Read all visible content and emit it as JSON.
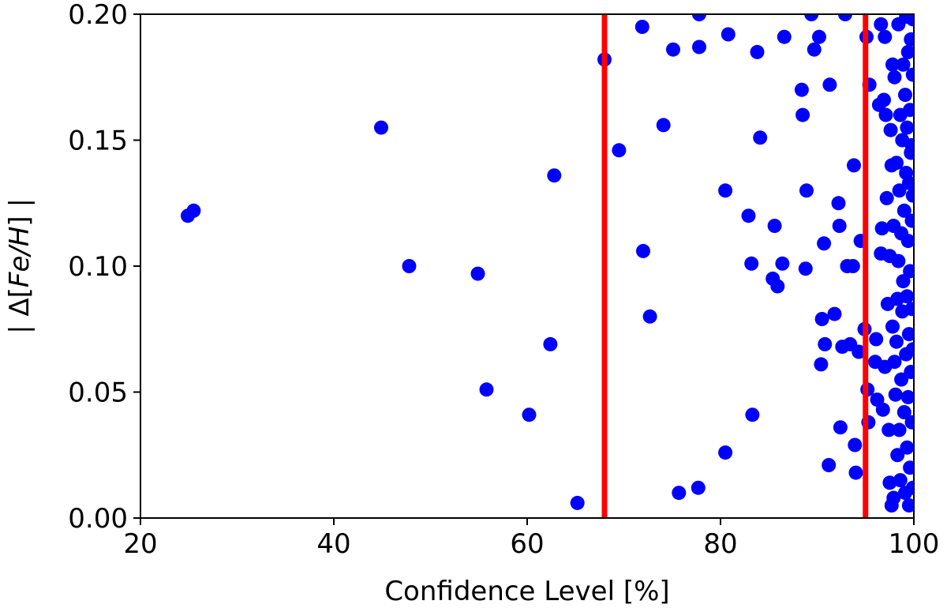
{
  "chart_data": {
    "type": "scatter",
    "xlabel": "Confidence Level [%]",
    "ylabel": {
      "prefix": "| Δ[",
      "italic": "Fe/H",
      "suffix": "] |"
    },
    "xlim": [
      20,
      100
    ],
    "ylim": [
      0,
      0.2
    ],
    "xticks": [
      20,
      40,
      60,
      80,
      100
    ],
    "xtick_labels": [
      "20",
      "40",
      "60",
      "80",
      "100"
    ],
    "yticks": [
      0.0,
      0.05,
      0.1,
      0.15,
      0.2
    ],
    "ytick_labels": [
      "0.00",
      "0.05",
      "0.10",
      "0.15",
      "0.20"
    ],
    "grid": false,
    "point_color": "#0000ff",
    "line_color": "#ff0000",
    "vertical_lines": [
      68,
      95
    ],
    "points": [
      [
        24.9,
        0.12
      ],
      [
        25.5,
        0.122
      ],
      [
        44.9,
        0.155
      ],
      [
        47.8,
        0.1
      ],
      [
        54.9,
        0.097
      ],
      [
        55.8,
        0.051
      ],
      [
        60.2,
        0.041
      ],
      [
        62.4,
        0.069
      ],
      [
        62.8,
        0.136
      ],
      [
        65.2,
        0.006
      ],
      [
        68.0,
        0.182
      ],
      [
        69.5,
        0.146
      ],
      [
        71.9,
        0.195
      ],
      [
        72.0,
        0.106
      ],
      [
        72.7,
        0.08
      ],
      [
        74.1,
        0.156
      ],
      [
        75.1,
        0.186
      ],
      [
        75.7,
        0.01
      ],
      [
        77.8,
        0.187
      ],
      [
        77.7,
        0.012
      ],
      [
        77.8,
        0.2
      ],
      [
        80.5,
        0.13
      ],
      [
        80.5,
        0.026
      ],
      [
        80.8,
        0.192
      ],
      [
        82.9,
        0.12
      ],
      [
        83.2,
        0.101
      ],
      [
        83.3,
        0.041
      ],
      [
        83.8,
        0.185
      ],
      [
        84.1,
        0.151
      ],
      [
        85.4,
        0.095
      ],
      [
        85.6,
        0.116
      ],
      [
        85.9,
        0.092
      ],
      [
        86.4,
        0.101
      ],
      [
        86.6,
        0.191
      ],
      [
        88.4,
        0.17
      ],
      [
        88.5,
        0.16
      ],
      [
        88.8,
        0.099
      ],
      [
        88.9,
        0.13
      ],
      [
        89.4,
        0.2
      ],
      [
        89.7,
        0.186
      ],
      [
        90.2,
        0.191
      ],
      [
        90.4,
        0.061
      ],
      [
        90.5,
        0.079
      ],
      [
        90.7,
        0.109
      ],
      [
        90.8,
        0.069
      ],
      [
        91.2,
        0.021
      ],
      [
        91.3,
        0.172
      ],
      [
        91.8,
        0.081
      ],
      [
        92.2,
        0.125
      ],
      [
        92.3,
        0.116
      ],
      [
        92.4,
        0.036
      ],
      [
        92.6,
        0.068
      ],
      [
        92.9,
        0.2
      ],
      [
        93.1,
        0.1
      ],
      [
        93.4,
        0.069
      ],
      [
        93.7,
        0.1
      ],
      [
        93.8,
        0.14
      ],
      [
        93.9,
        0.029
      ],
      [
        94.0,
        0.018
      ],
      [
        94.3,
        0.066
      ],
      [
        94.5,
        0.11
      ],
      [
        94.9,
        0.075
      ],
      [
        95.1,
        0.191
      ],
      [
        95.2,
        0.051
      ],
      [
        95.3,
        0.038
      ],
      [
        95.4,
        0.172
      ],
      [
        96.0,
        0.062
      ],
      [
        96.1,
        0.071
      ],
      [
        96.2,
        0.047
      ],
      [
        96.4,
        0.164
      ],
      [
        96.6,
        0.105
      ],
      [
        96.6,
        0.196
      ],
      [
        96.7,
        0.115
      ],
      [
        96.8,
        0.043
      ],
      [
        96.9,
        0.166
      ],
      [
        97.0,
        0.06
      ],
      [
        97.0,
        0.191
      ],
      [
        97.1,
        0.16
      ],
      [
        97.2,
        0.127
      ],
      [
        97.3,
        0.085
      ],
      [
        97.4,
        0.035
      ],
      [
        97.5,
        0.014
      ],
      [
        97.5,
        0.104
      ],
      [
        97.6,
        0.154
      ],
      [
        97.7,
        0.14
      ],
      [
        97.7,
        0.005
      ],
      [
        97.8,
        0.18
      ],
      [
        97.8,
        0.076
      ],
      [
        97.9,
        0.116
      ],
      [
        97.9,
        0.008
      ],
      [
        98.0,
        0.062
      ],
      [
        98.0,
        0.175
      ],
      [
        98.1,
        0.049
      ],
      [
        98.2,
        0.141
      ],
      [
        98.2,
        0.07
      ],
      [
        98.3,
        0.087
      ],
      [
        98.3,
        0.025
      ],
      [
        98.4,
        0.196
      ],
      [
        98.4,
        0.102
      ],
      [
        98.5,
        0.13
      ],
      [
        98.5,
        0.035
      ],
      [
        98.6,
        0.16
      ],
      [
        98.6,
        0.015
      ],
      [
        98.7,
        0.113
      ],
      [
        98.7,
        0.055
      ],
      [
        98.8,
        0.15
      ],
      [
        98.8,
        0.082
      ],
      [
        98.9,
        0.18
      ],
      [
        98.9,
        0.094
      ],
      [
        99.0,
        0.122
      ],
      [
        99.0,
        0.042
      ],
      [
        99.1,
        0.168
      ],
      [
        99.1,
        0.01
      ],
      [
        99.2,
        0.199
      ],
      [
        99.2,
        0.137
      ],
      [
        99.2,
        0.065
      ],
      [
        99.3,
        0.088
      ],
      [
        99.3,
        0.155
      ],
      [
        99.3,
        0.028
      ],
      [
        99.4,
        0.11
      ],
      [
        99.4,
        0.185
      ],
      [
        99.4,
        0.048
      ],
      [
        99.5,
        0.073
      ],
      [
        99.5,
        0.133
      ],
      [
        99.5,
        0.005
      ],
      [
        99.6,
        0.162
      ],
      [
        99.6,
        0.098
      ],
      [
        99.6,
        0.02
      ],
      [
        99.7,
        0.19
      ],
      [
        99.7,
        0.145
      ],
      [
        99.7,
        0.058
      ],
      [
        99.8,
        0.118
      ],
      [
        99.8,
        0.083
      ],
      [
        99.8,
        0.038
      ],
      [
        99.9,
        0.176
      ],
      [
        99.9,
        0.128
      ],
      [
        99.9,
        0.067
      ],
      [
        99.9,
        0.012
      ],
      [
        99.9,
        0.198
      ],
      [
        99.8,
        0.148
      ]
    ]
  }
}
